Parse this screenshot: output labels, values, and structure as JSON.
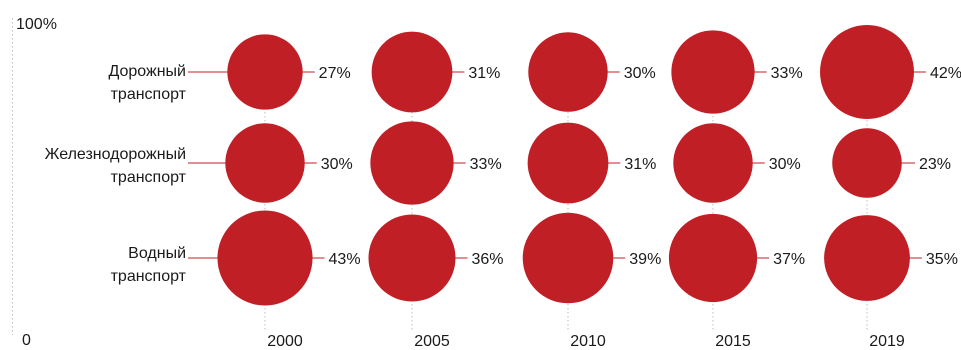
{
  "chart_data": {
    "type": "bubble",
    "title": "",
    "y_axis": {
      "top_label": "100%",
      "bottom_label": "0"
    },
    "years": [
      "2000",
      "2005",
      "2010",
      "2015",
      "2019"
    ],
    "rows": [
      {
        "label_lines": [
          "Дорожный",
          "транспорт"
        ],
        "values": [
          27,
          31,
          30,
          33,
          42
        ]
      },
      {
        "label_lines": [
          "Железнодорожный",
          "транспорт"
        ],
        "values": [
          30,
          33,
          31,
          30,
          23
        ]
      },
      {
        "label_lines": [
          "Водный",
          "транспорт"
        ],
        "values": [
          43,
          36,
          39,
          37,
          35
        ]
      }
    ],
    "value_suffix": "%",
    "colors": {
      "bubble": "#C01F26",
      "leader": "#C01F26",
      "text": "#1a1a1a",
      "guide": "#bdbdbd"
    }
  }
}
